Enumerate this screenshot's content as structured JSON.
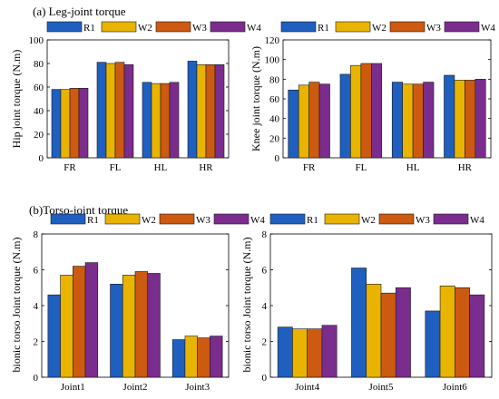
{
  "figure": {
    "title_a": "(a) Leg-joint torque",
    "title_b": "(b)Torso-joint torque"
  },
  "colors": {
    "R1": "#1f5fc0",
    "W2": "#e8b400",
    "W3": "#cc5a10",
    "W4": "#7b2d8e"
  },
  "chart_data": [
    {
      "type": "bar",
      "ylabel": "Hip joint torque (N.m)",
      "xlabel": "",
      "categories": [
        "FR",
        "FL",
        "HL",
        "HR"
      ],
      "ylim": [
        0,
        100
      ],
      "yticks": [
        0,
        20,
        40,
        60,
        80,
        100
      ],
      "legend": "top",
      "series": [
        {
          "name": "R1",
          "values": [
            58,
            81,
            64,
            82
          ]
        },
        {
          "name": "W2",
          "values": [
            58,
            80,
            63,
            79
          ]
        },
        {
          "name": "W3",
          "values": [
            59,
            81,
            63,
            79
          ]
        },
        {
          "name": "W4",
          "values": [
            59,
            79,
            64,
            79
          ]
        }
      ]
    },
    {
      "type": "bar",
      "ylabel": "Knee joint torque (N.m)",
      "xlabel": "",
      "categories": [
        "FR",
        "FL",
        "HL",
        "HR"
      ],
      "ylim": [
        0,
        120
      ],
      "yticks": [
        0,
        20,
        40,
        60,
        80,
        100,
        120
      ],
      "legend": "top",
      "series": [
        {
          "name": "R1",
          "values": [
            69,
            85,
            77,
            84
          ]
        },
        {
          "name": "W2",
          "values": [
            74,
            94,
            75,
            79
          ]
        },
        {
          "name": "W3",
          "values": [
            77,
            96,
            75,
            79
          ]
        },
        {
          "name": "W4",
          "values": [
            75,
            96,
            77,
            80
          ]
        }
      ]
    },
    {
      "type": "bar",
      "ylabel": "bionic torso Joint torque (N.m)",
      "xlabel": "",
      "categories": [
        "Joint1",
        "Joint2",
        "Joint3"
      ],
      "ylim": [
        0,
        8
      ],
      "yticks": [
        0,
        2,
        4,
        6,
        8
      ],
      "legend": "top",
      "series": [
        {
          "name": "R1",
          "values": [
            4.6,
            5.2,
            2.1
          ]
        },
        {
          "name": "W2",
          "values": [
            5.7,
            5.7,
            2.3
          ]
        },
        {
          "name": "W3",
          "values": [
            6.2,
            5.9,
            2.2
          ]
        },
        {
          "name": "W4",
          "values": [
            6.4,
            5.8,
            2.3
          ]
        }
      ]
    },
    {
      "type": "bar",
      "ylabel": "bionic torso Joint torque (N.m)",
      "xlabel": "",
      "categories": [
        "Joint4",
        "Joint5",
        "Joint6"
      ],
      "ylim": [
        0,
        8
      ],
      "yticks": [
        0,
        2,
        4,
        6,
        8
      ],
      "legend": "top",
      "series": [
        {
          "name": "R1",
          "values": [
            2.8,
            6.1,
            3.7
          ]
        },
        {
          "name": "W2",
          "values": [
            2.7,
            5.2,
            5.1
          ]
        },
        {
          "name": "W3",
          "values": [
            2.7,
            4.7,
            5.0
          ]
        },
        {
          "name": "W4",
          "values": [
            2.9,
            5.0,
            4.6
          ]
        }
      ]
    }
  ]
}
